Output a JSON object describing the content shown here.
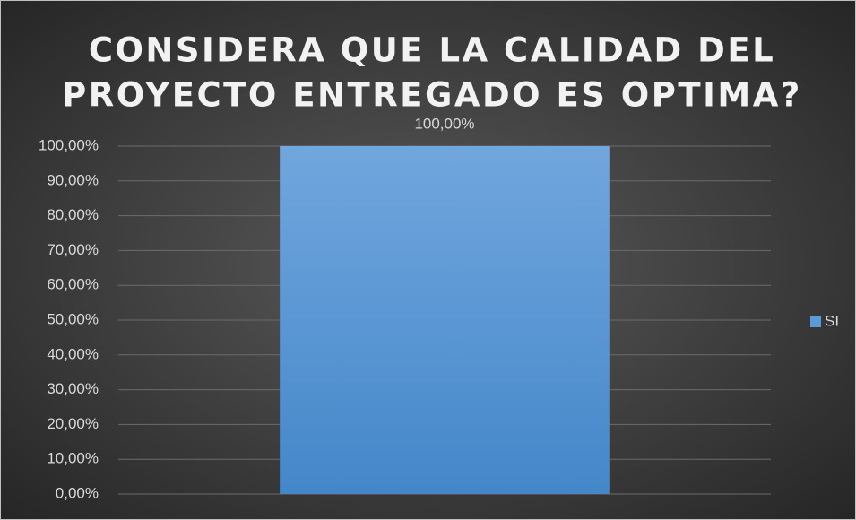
{
  "chart_data": {
    "type": "bar",
    "title": [
      "CONSIDERA QUE LA CALIDAD DEL",
      "PROYECTO ENTREGADO ES OPTIMA?"
    ],
    "categories": [
      null
    ],
    "series": [
      {
        "name": "SI",
        "color": "#5b9bd5",
        "values": [
          100
        ],
        "value_labels": [
          "100,00%"
        ]
      }
    ],
    "ylim": [
      0,
      100
    ],
    "yticks": [
      {
        "value": 0,
        "label": "0,00%"
      },
      {
        "value": 10,
        "label": "10,00%"
      },
      {
        "value": 20,
        "label": "20,00%"
      },
      {
        "value": 30,
        "label": "30,00%"
      },
      {
        "value": 40,
        "label": "40,00%"
      },
      {
        "value": 50,
        "label": "50,00%"
      },
      {
        "value": 60,
        "label": "60,00%"
      },
      {
        "value": 70,
        "label": "70,00%"
      },
      {
        "value": 80,
        "label": "80,00%"
      },
      {
        "value": 90,
        "label": "90,00%"
      },
      {
        "value": 100,
        "label": "100,00%"
      }
    ],
    "grid": true,
    "legend": "right"
  }
}
